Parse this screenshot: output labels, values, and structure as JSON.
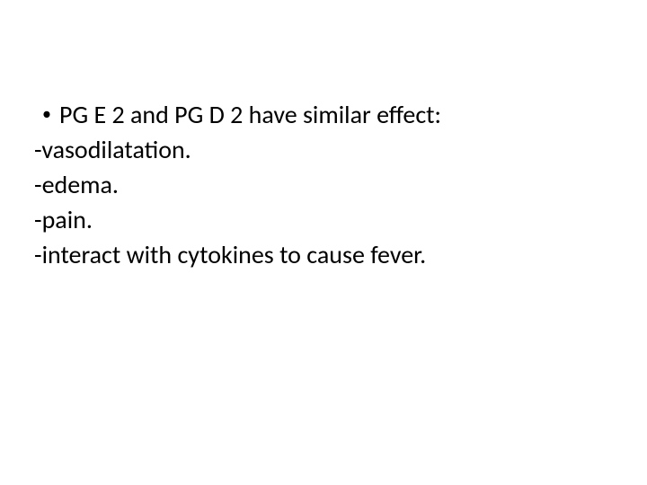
{
  "slide": {
    "background_color": "#ffffff",
    "text_color": "#000000",
    "font_family": "Calibri",
    "base_fontsize": 28,
    "bullet": {
      "marker": "•",
      "text": "PG E 2 and PG D 2 have similar effect:"
    },
    "lines": [
      "-vasodilatation.",
      "-edema.",
      "-pain.",
      "-interact with cytokines to cause fever."
    ]
  }
}
